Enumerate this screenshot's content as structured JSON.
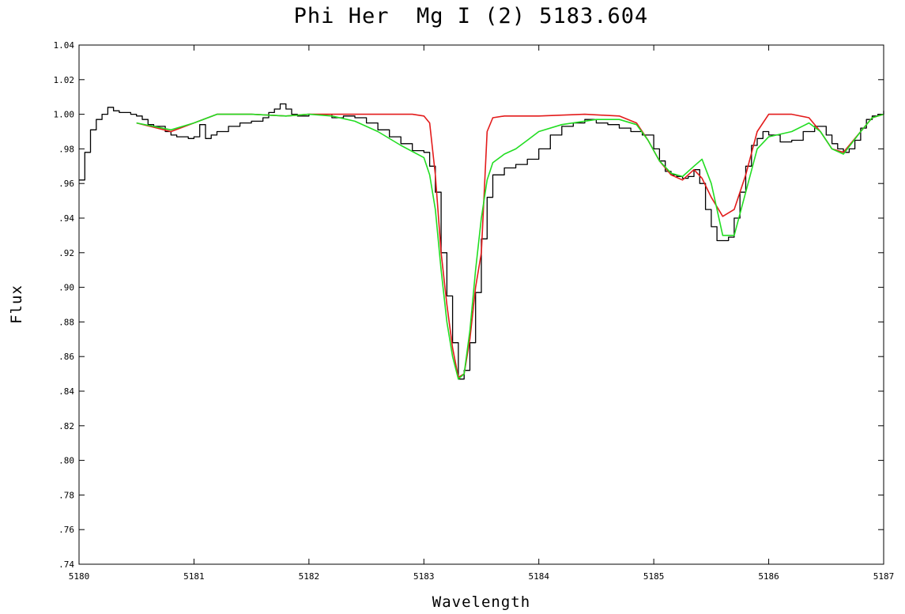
{
  "chart_data": {
    "type": "line",
    "title": "Phi Her  Mg I (2) 5183.604",
    "xlabel": "Wavelength",
    "ylabel": "Flux",
    "xlim": [
      5180,
      5187
    ],
    "ylim": [
      0.74,
      1.04
    ],
    "x_ticks": [
      "5180",
      "5181",
      "5182",
      "5183",
      "5184",
      "5185",
      "5186",
      "5187"
    ],
    "y_ticks": [
      ".74",
      ".76",
      ".78",
      ".80",
      ".82",
      ".84",
      ".86",
      ".88",
      ".90",
      ".92",
      ".94",
      ".96",
      ".98",
      "1.00",
      "1.02",
      "1.04"
    ],
    "grid": false,
    "series": [
      {
        "style": "step",
        "color": "#000000",
        "x": [
          5180.0,
          5180.05,
          5180.1,
          5180.15,
          5180.2,
          5180.25,
          5180.3,
          5180.35,
          5180.4,
          5180.45,
          5180.5,
          5180.55,
          5180.6,
          5180.65,
          5180.7,
          5180.75,
          5180.8,
          5180.85,
          5180.9,
          5180.95,
          5181.0,
          5181.05,
          5181.1,
          5181.15,
          5181.2,
          5181.3,
          5181.4,
          5181.5,
          5181.6,
          5181.65,
          5181.7,
          5181.75,
          5181.8,
          5181.85,
          5181.9,
          5181.95,
          5182.0,
          5182.05,
          5182.1,
          5182.15,
          5182.2,
          5182.3,
          5182.4,
          5182.5,
          5182.6,
          5182.7,
          5182.8,
          5182.9,
          5183.0,
          5183.05,
          5183.1,
          5183.15,
          5183.2,
          5183.25,
          5183.3,
          5183.35,
          5183.4,
          5183.45,
          5183.5,
          5183.55,
          5183.6,
          5183.7,
          5183.8,
          5183.9,
          5184.0,
          5184.1,
          5184.2,
          5184.3,
          5184.4,
          5184.5,
          5184.6,
          5184.7,
          5184.8,
          5184.9,
          5185.0,
          5185.05,
          5185.1,
          5185.15,
          5185.2,
          5185.25,
          5185.3,
          5185.35,
          5185.4,
          5185.45,
          5185.5,
          5185.55,
          5185.6,
          5185.65,
          5185.7,
          5185.75,
          5185.8,
          5185.85,
          5185.9,
          5185.95,
          5186.0,
          5186.1,
          5186.2,
          5186.3,
          5186.4,
          5186.5,
          5186.55,
          5186.6,
          5186.65,
          5186.7,
          5186.75,
          5186.8,
          5186.85,
          5186.9,
          5186.95,
          5187.0
        ],
        "y": [
          0.962,
          0.978,
          0.991,
          0.997,
          1.0,
          1.004,
          1.002,
          1.001,
          1.001,
          1.0,
          0.999,
          0.997,
          0.994,
          0.993,
          0.993,
          0.99,
          0.988,
          0.987,
          0.987,
          0.986,
          0.987,
          0.994,
          0.986,
          0.988,
          0.99,
          0.993,
          0.995,
          0.996,
          0.998,
          1.001,
          1.003,
          1.006,
          1.003,
          1.0,
          0.999,
          0.999,
          1.0,
          1.0,
          1.0,
          1.0,
          0.998,
          0.999,
          0.998,
          0.995,
          0.991,
          0.987,
          0.983,
          0.979,
          0.978,
          0.97,
          0.955,
          0.92,
          0.895,
          0.868,
          0.847,
          0.852,
          0.868,
          0.897,
          0.928,
          0.952,
          0.965,
          0.969,
          0.971,
          0.974,
          0.98,
          0.988,
          0.993,
          0.995,
          0.997,
          0.995,
          0.994,
          0.992,
          0.99,
          0.988,
          0.98,
          0.973,
          0.967,
          0.965,
          0.964,
          0.963,
          0.964,
          0.968,
          0.96,
          0.945,
          0.935,
          0.927,
          0.927,
          0.929,
          0.94,
          0.955,
          0.97,
          0.982,
          0.986,
          0.99,
          0.988,
          0.984,
          0.985,
          0.99,
          0.993,
          0.988,
          0.983,
          0.98,
          0.978,
          0.98,
          0.985,
          0.992,
          0.997,
          0.999,
          1.0,
          1.002
        ]
      },
      {
        "style": "line",
        "color": "#e31b1b",
        "x": [
          5180.5,
          5180.8,
          5181.0,
          5181.2,
          5181.5,
          5181.8,
          5182.0,
          5182.5,
          5182.9,
          5183.0,
          5183.05,
          5183.1,
          5183.15,
          5183.2,
          5183.25,
          5183.3,
          5183.35,
          5183.4,
          5183.45,
          5183.5,
          5183.55,
          5183.6,
          5183.7,
          5184.0,
          5184.4,
          5184.7,
          5184.85,
          5184.95,
          5185.05,
          5185.15,
          5185.25,
          5185.35,
          5185.42,
          5185.5,
          5185.6,
          5185.7,
          5185.8,
          5185.9,
          5186.0,
          5186.2,
          5186.35,
          5186.45,
          5186.55,
          5186.65,
          5186.8,
          5186.9,
          5187.0
        ],
        "y": [
          0.995,
          0.99,
          0.995,
          1.0,
          1.0,
          0.999,
          1.0,
          1.0,
          1.0,
          0.999,
          0.995,
          0.965,
          0.92,
          0.89,
          0.865,
          0.848,
          0.85,
          0.87,
          0.9,
          0.92,
          0.99,
          0.998,
          0.999,
          0.999,
          1.0,
          0.999,
          0.995,
          0.985,
          0.973,
          0.965,
          0.962,
          0.968,
          0.963,
          0.952,
          0.941,
          0.945,
          0.965,
          0.99,
          1.0,
          1.0,
          0.998,
          0.99,
          0.98,
          0.978,
          0.99,
          0.998,
          1.0
        ]
      },
      {
        "style": "line",
        "color": "#22dd22",
        "x": [
          5180.5,
          5180.8,
          5181.0,
          5181.2,
          5181.5,
          5181.8,
          5182.0,
          5182.2,
          5182.4,
          5182.6,
          5182.8,
          5183.0,
          5183.05,
          5183.1,
          5183.15,
          5183.2,
          5183.25,
          5183.3,
          5183.35,
          5183.4,
          5183.45,
          5183.5,
          5183.55,
          5183.6,
          5183.7,
          5183.8,
          5183.9,
          5184.0,
          5184.2,
          5184.5,
          5184.7,
          5184.85,
          5184.95,
          5185.05,
          5185.15,
          5185.25,
          5185.35,
          5185.42,
          5185.5,
          5185.6,
          5185.7,
          5185.8,
          5185.9,
          5186.0,
          5186.2,
          5186.35,
          5186.45,
          5186.55,
          5186.65,
          5186.8,
          5186.9,
          5187.0
        ],
        "y": [
          0.995,
          0.991,
          0.995,
          1.0,
          1.0,
          0.999,
          1.0,
          0.999,
          0.996,
          0.99,
          0.982,
          0.975,
          0.965,
          0.945,
          0.91,
          0.88,
          0.86,
          0.847,
          0.85,
          0.875,
          0.91,
          0.94,
          0.962,
          0.972,
          0.977,
          0.98,
          0.985,
          0.99,
          0.994,
          0.997,
          0.997,
          0.994,
          0.985,
          0.973,
          0.966,
          0.964,
          0.97,
          0.974,
          0.96,
          0.93,
          0.93,
          0.955,
          0.98,
          0.987,
          0.99,
          0.995,
          0.99,
          0.98,
          0.977,
          0.99,
          0.998,
          1.0
        ]
      }
    ]
  }
}
